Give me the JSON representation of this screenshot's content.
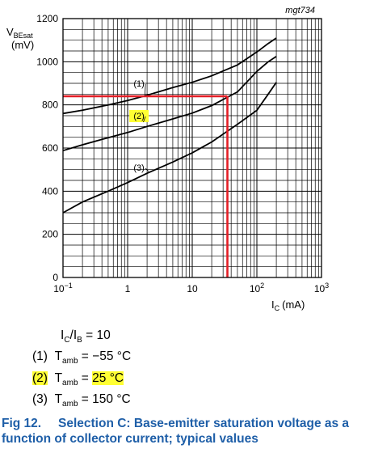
{
  "chart_data": {
    "type": "line",
    "figure_id": "mgt734",
    "ylabel_main": "V",
    "ylabel_sub": "BEsat",
    "yunit": "(mV)",
    "xlabel_main": "I",
    "xlabel_sub": "C",
    "xunit": "(mA)",
    "xscale": "log",
    "xlim": [
      0.1,
      1000
    ],
    "ylim": [
      0,
      1200
    ],
    "grid": true,
    "y_ticks": [
      "0",
      "200",
      "400",
      "600",
      "800",
      "1000",
      "1200"
    ],
    "x_ticks": [
      {
        "value": 0.1,
        "base": "10",
        "exp": "−1"
      },
      {
        "value": 1,
        "base": "1",
        "exp": ""
      },
      {
        "value": 10,
        "base": "10",
        "exp": ""
      },
      {
        "value": 100,
        "base": "10",
        "exp": "2"
      },
      {
        "value": 1000,
        "base": "10",
        "exp": "3"
      }
    ],
    "series": [
      {
        "name": "(1)",
        "x": [
          0.1,
          0.2,
          0.5,
          1,
          2,
          5,
          10,
          20,
          50,
          100,
          150,
          200
        ],
        "y": [
          760,
          775,
          800,
          820,
          845,
          880,
          905,
          935,
          985,
          1045,
          1085,
          1110
        ]
      },
      {
        "name": "(2)",
        "x": [
          0.1,
          0.2,
          0.5,
          1,
          2,
          5,
          10,
          20,
          50,
          100,
          150,
          200
        ],
        "y": [
          588,
          615,
          648,
          672,
          700,
          735,
          762,
          797,
          860,
          955,
          1000,
          1025
        ]
      },
      {
        "name": "(3)",
        "x": [
          0.1,
          0.2,
          0.5,
          1,
          2,
          5,
          10,
          20,
          50,
          100,
          150,
          200
        ],
        "y": [
          300,
          350,
          400,
          440,
          483,
          535,
          578,
          628,
          710,
          775,
          850,
          905
        ]
      }
    ],
    "series_labels": [
      {
        "text": "(1)",
        "x": 1.5,
        "y": 885,
        "tx": 1.85,
        "ty": 842
      },
      {
        "text": "(2)",
        "x": 1.5,
        "y": 735,
        "tx": 1.75,
        "ty": 720
      },
      {
        "text": "(3)",
        "x": 1.5,
        "y": 495,
        "tx": 2.1,
        "ty": 492
      }
    ],
    "annotation": {
      "x": 35,
      "y": 840,
      "color": "#e41e26"
    },
    "highlight_series": "(2)"
  },
  "legend": {
    "ratio_main": "I",
    "ratio_sub1": "C",
    "ratio_mid": "/I",
    "ratio_sub2": "B",
    "ratio_val": " = 10",
    "items": [
      {
        "num": "(1)",
        "t": "T",
        "sub": "amb",
        "eq": " = ",
        "val": "−55 °C"
      },
      {
        "num": "(2)",
        "t": "T",
        "sub": "amb",
        "eq": " = ",
        "val": "25 °C"
      },
      {
        "num": "(3)",
        "t": "T",
        "sub": "amb",
        "eq": " = ",
        "val": "150 °C"
      }
    ]
  },
  "caption": {
    "fig": "Fig 12.",
    "text": "Selection C: Base-emitter saturation voltage as a function of collector current; typical values"
  },
  "colors": {
    "highlight": "#ffff33",
    "caption": "#1f5fa8",
    "marker": "#e41e26"
  }
}
